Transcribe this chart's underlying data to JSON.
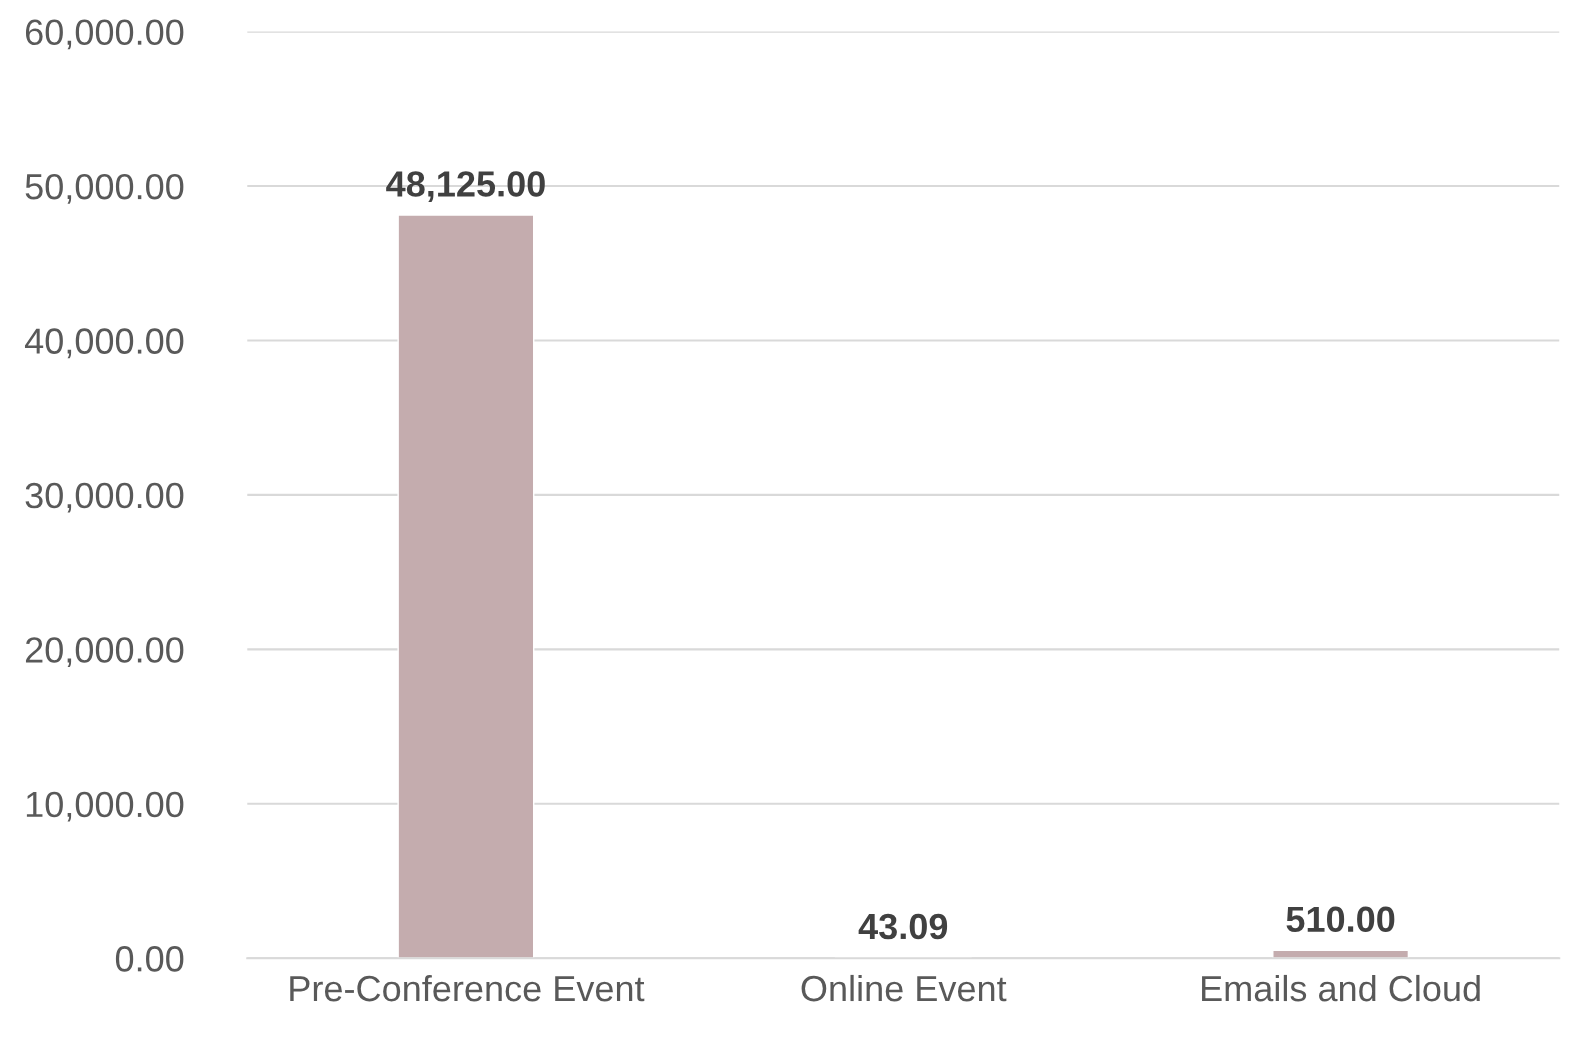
{
  "chart_data": {
    "type": "bar",
    "categories": [
      "Pre-Conference Event",
      "Online Event",
      "Emails and Cloud"
    ],
    "values": [
      48125,
      43.09,
      510
    ],
    "value_labels": [
      "48,125.00",
      "43.09",
      "510.00"
    ],
    "color": "#c4acae",
    "ylim": [
      0,
      60000
    ],
    "yticks": [
      {
        "value": 0,
        "label": "0.00"
      },
      {
        "value": 10000,
        "label": "10,000.00"
      },
      {
        "value": 20000,
        "label": "20,000.00"
      },
      {
        "value": 30000,
        "label": "30,000.00"
      },
      {
        "value": 40000,
        "label": "40,000.00"
      },
      {
        "value": 50000,
        "label": "50,000.00"
      },
      {
        "value": 60000,
        "label": "60,000.00"
      }
    ],
    "grid": "y"
  }
}
